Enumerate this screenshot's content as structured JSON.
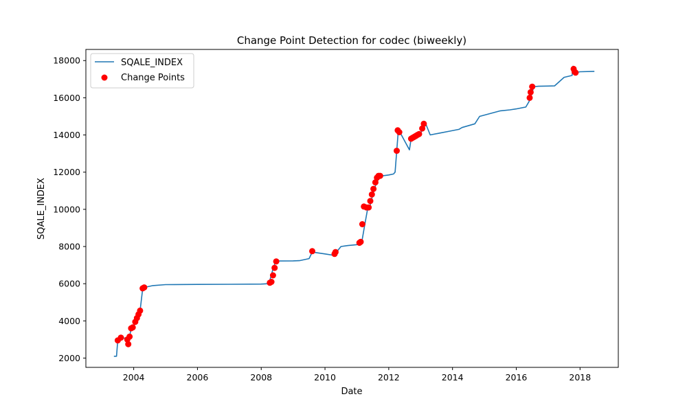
{
  "chart_data": {
    "type": "line",
    "title": "Change Point Detection for codec (biweekly)",
    "xlabel": "Date",
    "ylabel": "SQALE_INDEX",
    "xlim": [
      2002.5,
      2019.2
    ],
    "ylim": [
      1500,
      18600
    ],
    "x_ticks": [
      2004,
      2006,
      2008,
      2010,
      2012,
      2014,
      2016,
      2018
    ],
    "y_ticks": [
      2000,
      4000,
      6000,
      8000,
      10000,
      12000,
      14000,
      16000,
      18000
    ],
    "grid": false,
    "legend_position": "top-left",
    "colors": {
      "line": "#1f77b4",
      "points": "#ff0000"
    },
    "series": [
      {
        "name": "SQALE_INDEX",
        "kind": "line",
        "x": [
          2003.38,
          2003.46,
          2003.5,
          2003.6,
          2003.8,
          2003.82,
          2003.85,
          2003.88,
          2003.92,
          2004.0,
          2004.05,
          2004.1,
          2004.15,
          2004.2,
          2004.28,
          2004.33,
          2004.6,
          2005.0,
          2006.0,
          2007.0,
          2008.0,
          2008.2,
          2008.25,
          2008.32,
          2008.38,
          2008.45,
          2008.5,
          2009.0,
          2009.2,
          2009.5,
          2009.6,
          2010.0,
          2010.3,
          2010.35,
          2010.5,
          2010.7,
          2011.0,
          2011.1,
          2011.15,
          2011.25,
          2011.35,
          2011.4,
          2011.45,
          2011.5,
          2011.55,
          2011.62,
          2011.7,
          2011.8,
          2012.0,
          2012.15,
          2012.2,
          2012.25,
          2012.3,
          2012.35,
          2012.65,
          2012.7,
          2012.8,
          2012.9,
          2013.0,
          2013.1,
          2013.15,
          2013.3,
          2013.6,
          2013.9,
          2014.2,
          2014.3,
          2014.7,
          2014.85,
          2015.5,
          2015.8,
          2016.0,
          2016.3,
          2016.4,
          2016.45,
          2016.5,
          2016.55,
          2016.7,
          2017.0,
          2017.2,
          2017.5,
          2017.75,
          2017.78,
          2017.82,
          2017.85,
          2018.0,
          2018.45
        ],
        "y": [
          2100,
          2100,
          2950,
          3100,
          3050,
          2750,
          3100,
          3200,
          3650,
          3700,
          3950,
          4150,
          4350,
          4550,
          5700,
          5800,
          5900,
          5950,
          5960,
          5970,
          5980,
          6000,
          6050,
          6500,
          6850,
          7200,
          7220,
          7230,
          7240,
          7350,
          7700,
          7600,
          7520,
          7680,
          8000,
          8050,
          8100,
          8150,
          8200,
          9200,
          10150,
          10100,
          10450,
          10800,
          11100,
          11450,
          11700,
          11800,
          11850,
          11900,
          12000,
          13150,
          14250,
          14150,
          13200,
          13800,
          13900,
          14000,
          14100,
          14400,
          14650,
          14000,
          14100,
          14200,
          14300,
          14400,
          14600,
          15000,
          15300,
          15350,
          15400,
          15500,
          15800,
          16000,
          16300,
          16600,
          16620,
          16630,
          16640,
          17100,
          17200,
          17700,
          17500,
          17350,
          17400,
          17420
        ]
      },
      {
        "name": "Change Points",
        "kind": "scatter",
        "x": [
          2003.5,
          2003.6,
          2003.8,
          2003.83,
          2003.87,
          2003.92,
          2003.97,
          2004.05,
          2004.1,
          2004.15,
          2004.2,
          2004.28,
          2004.33,
          2008.27,
          2008.32,
          2008.37,
          2008.42,
          2008.47,
          2009.6,
          2010.3,
          2010.33,
          2011.08,
          2011.12,
          2011.17,
          2011.22,
          2011.3,
          2011.37,
          2011.42,
          2011.47,
          2011.52,
          2011.58,
          2011.63,
          2011.68,
          2011.73,
          2012.25,
          2012.28,
          2012.33,
          2012.7,
          2012.75,
          2012.8,
          2012.85,
          2012.9,
          2012.95,
          2013.05,
          2013.1,
          2016.42,
          2016.45,
          2016.5,
          2017.8,
          2017.83,
          2017.86
        ],
        "y": [
          2950,
          3100,
          3000,
          2750,
          3150,
          3600,
          3650,
          3950,
          4150,
          4350,
          4550,
          5750,
          5800,
          6050,
          6100,
          6450,
          6850,
          7200,
          7750,
          7600,
          7700,
          8200,
          8250,
          9200,
          10150,
          10100,
          10100,
          10450,
          10800,
          11100,
          11450,
          11700,
          11800,
          11800,
          13150,
          14250,
          14150,
          13800,
          13850,
          13900,
          13950,
          14000,
          14050,
          14350,
          14600,
          16000,
          16300,
          16600,
          17550,
          17400,
          17350
        ]
      }
    ]
  }
}
